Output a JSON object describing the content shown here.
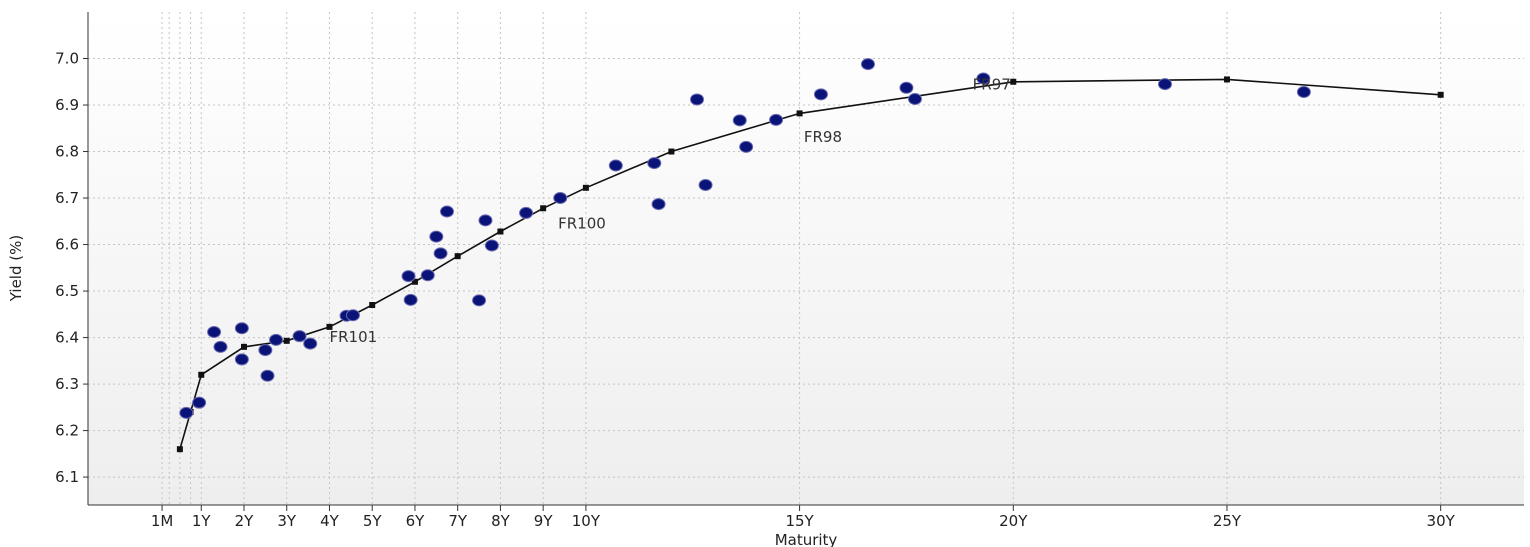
{
  "chart_data": {
    "type": "scatter",
    "title": "",
    "xlabel": "Maturity",
    "ylabel": "Yield (%)",
    "x_unit": "years",
    "xlim": [
      -1.65,
      31.95
    ],
    "ylim": [
      6.04,
      7.1
    ],
    "grid": true,
    "legend": "none",
    "x_ticks": [
      {
        "value": 0.083,
        "label": "1M"
      },
      {
        "value": 1,
        "label": "1Y"
      },
      {
        "value": 2,
        "label": "2Y"
      },
      {
        "value": 3,
        "label": "3Y"
      },
      {
        "value": 4,
        "label": "4Y"
      },
      {
        "value": 5,
        "label": "5Y"
      },
      {
        "value": 6,
        "label": "6Y"
      },
      {
        "value": 7,
        "label": "7Y"
      },
      {
        "value": 8,
        "label": "8Y"
      },
      {
        "value": 9,
        "label": "9Y"
      },
      {
        "value": 10,
        "label": "10Y"
      },
      {
        "value": 15,
        "label": "15Y"
      },
      {
        "value": 20,
        "label": "20Y"
      },
      {
        "value": 25,
        "label": "25Y"
      },
      {
        "value": 30,
        "label": "30Y"
      }
    ],
    "minor_x_gridlines": [
      0.25,
      0.5,
      0.75
    ],
    "y_ticks": [
      {
        "value": 6.1,
        "label": "6.1"
      },
      {
        "value": 6.2,
        "label": "6.2"
      },
      {
        "value": 6.3,
        "label": "6.3"
      },
      {
        "value": 6.4,
        "label": "6.4"
      },
      {
        "value": 6.5,
        "label": "6.5"
      },
      {
        "value": 6.6,
        "label": "6.6"
      },
      {
        "value": 6.7,
        "label": "6.7"
      },
      {
        "value": 6.8,
        "label": "6.8"
      },
      {
        "value": 6.9,
        "label": "6.9"
      },
      {
        "value": 7.0,
        "label": "7.0"
      }
    ],
    "series": [
      {
        "kind": "line",
        "color": "#111111",
        "x": [
          0.5,
          0.75,
          1,
          2,
          3,
          4,
          5,
          6,
          7,
          8,
          9,
          10,
          12,
          15,
          20,
          25,
          30
        ],
        "y": [
          6.16,
          6.24,
          6.32,
          6.38,
          6.393,
          6.423,
          6.47,
          6.52,
          6.575,
          6.628,
          6.678,
          6.722,
          6.8,
          6.882,
          6.95,
          6.955,
          6.922
        ]
      },
      {
        "kind": "scatter",
        "color": "#0a1478",
        "x": [
          0.65,
          0.95,
          1.3,
          1.45,
          1.95,
          1.95,
          2.5,
          2.55,
          2.75,
          3.3,
          3.55,
          4.4,
          4.55,
          5.85,
          5.9,
          6.3,
          6.5,
          6.6,
          6.75,
          7.5,
          7.65,
          7.8,
          8.6,
          9.4,
          10.7,
          11.6,
          11.7,
          12.6,
          12.8,
          13.6,
          13.75,
          14.45,
          15.5,
          16.6,
          17.5,
          17.7,
          19.3,
          23.55,
          26.8
        ],
        "y": [
          6.238,
          6.26,
          6.412,
          6.38,
          6.42,
          6.353,
          6.373,
          6.318,
          6.395,
          6.403,
          6.387,
          6.447,
          6.448,
          6.532,
          6.481,
          6.534,
          6.617,
          6.581,
          6.671,
          6.48,
          6.652,
          6.598,
          6.668,
          6.7,
          6.77,
          6.775,
          6.687,
          6.912,
          6.728,
          6.867,
          6.81,
          6.868,
          6.923,
          6.988,
          6.937,
          6.913,
          6.957,
          6.945,
          6.928
        ]
      }
    ],
    "annotations": [
      {
        "text": "FR101",
        "x": 4,
        "y": 6.39
      },
      {
        "text": "FR100",
        "x": 9.35,
        "y": 6.635
      },
      {
        "text": "FR98",
        "x": 15.1,
        "y": 6.82
      },
      {
        "text": "FR97",
        "x": 19.05,
        "y": 6.933
      }
    ]
  }
}
